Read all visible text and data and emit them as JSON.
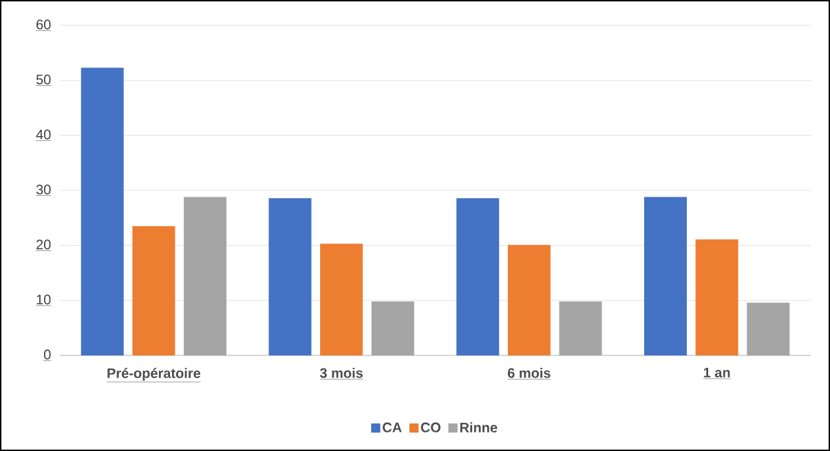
{
  "chart_data": {
    "type": "bar",
    "categories": [
      "Pré-opératoire",
      "3 mois",
      "6 mois",
      "1 an"
    ],
    "series": [
      {
        "name": "CA",
        "color": "#4472c4",
        "values": [
          52.3,
          28.6,
          28.6,
          28.8
        ]
      },
      {
        "name": "CO",
        "color": "#ed7d31",
        "values": [
          23.5,
          20.3,
          20.1,
          21.1
        ]
      },
      {
        "name": "Rinne",
        "color": "#a5a5a5",
        "values": [
          28.8,
          9.8,
          9.8,
          9.6
        ]
      }
    ],
    "ylim": [
      0,
      60
    ],
    "yticks": [
      0,
      10,
      20,
      30,
      40,
      50,
      60
    ],
    "grid": "y",
    "legend": "bottom"
  }
}
